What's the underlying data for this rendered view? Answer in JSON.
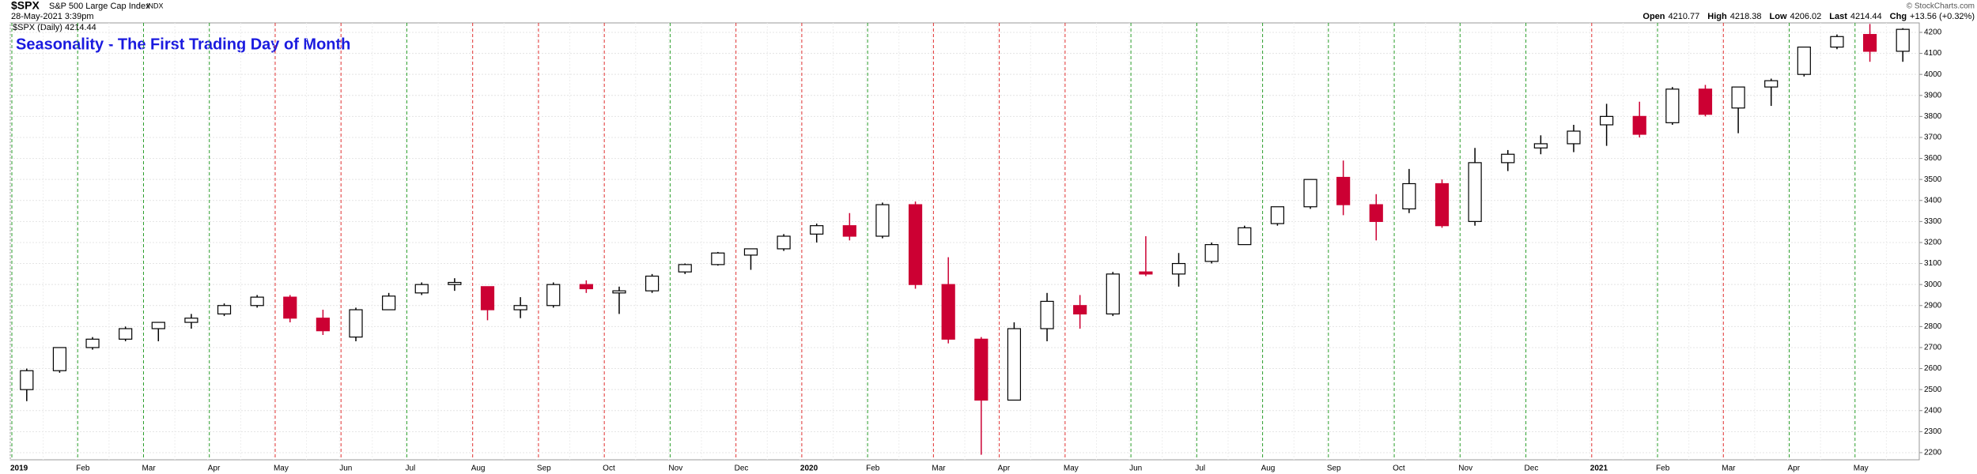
{
  "chart_data": {
    "type": "candlestick",
    "symbol": "$SPX",
    "name": "S&P 500 Large Cap Index",
    "exchange": "INDX",
    "timestamp": "28-May-2021 3:39pm",
    "legend": "$SPX (Daily) 4214.44",
    "copyright": "© StockCharts.com",
    "quote": [
      {
        "label": "Open",
        "value": "4210.77"
      },
      {
        "label": "High",
        "value": "4218.38"
      },
      {
        "label": "Low",
        "value": "4206.02"
      },
      {
        "label": "Last",
        "value": "4214.44"
      },
      {
        "label": "Chg",
        "value": "+13.56 (+0.32%)"
      }
    ],
    "title": "Seasonality - The First Trading Day of Month",
    "categories": [
      "2019",
      null,
      "Feb",
      null,
      "Mar",
      null,
      "Apr",
      null,
      "May",
      null,
      "Jun",
      null,
      "Jul",
      null,
      "Aug",
      null,
      "Sep",
      null,
      "Oct",
      null,
      "Nov",
      null,
      "Dec",
      null,
      "2020",
      null,
      "Feb",
      null,
      "Mar",
      null,
      "Apr",
      null,
      "May",
      null,
      "Jun",
      null,
      "Jul",
      null,
      "Aug",
      null,
      "Sep",
      null,
      "Oct",
      null,
      "Nov",
      null,
      "Dec",
      null,
      "2021",
      null,
      "Feb",
      null,
      "Mar",
      null,
      "Apr",
      null,
      "May",
      null
    ],
    "open": [
      2500,
      2590,
      2700,
      2740,
      2790,
      2820,
      2860,
      2900,
      2940,
      2840,
      2750,
      2880,
      2960,
      3000,
      2990,
      2880,
      2900,
      3000,
      2960,
      2970,
      3060,
      3095,
      3140,
      3170,
      3240,
      3280,
      3230,
      3380,
      3000,
      2740,
      2450,
      2790,
      2900,
      2860,
      3060,
      3050,
      3110,
      3190,
      3290,
      3370,
      3510,
      3380,
      3360,
      3480,
      3300,
      3580,
      3650,
      3670,
      3760,
      3800,
      3770,
      3930,
      3840,
      3940,
      4000,
      4130,
      4190,
      4110
    ],
    "high": [
      2600,
      2700,
      2750,
      2800,
      2820,
      2860,
      2910,
      2950,
      2950,
      2880,
      2890,
      2960,
      3010,
      3030,
      2990,
      2940,
      3010,
      3020,
      2990,
      3050,
      3100,
      3155,
      3170,
      3240,
      3290,
      3340,
      3390,
      3395,
      3130,
      2750,
      2820,
      2960,
      2950,
      3060,
      3230,
      3150,
      3200,
      3280,
      3370,
      3500,
      3590,
      3430,
      3550,
      3500,
      3650,
      3640,
      3710,
      3760,
      3860,
      3870,
      3940,
      3950,
      3940,
      3980,
      4130,
      4190,
      4240,
      4220
    ],
    "low": [
      2445,
      2580,
      2690,
      2730,
      2730,
      2790,
      2850,
      2890,
      2820,
      2760,
      2730,
      2880,
      2950,
      2970,
      2830,
      2840,
      2890,
      2960,
      2860,
      2960,
      3050,
      3090,
      3070,
      3160,
      3200,
      3210,
      3220,
      2980,
      2720,
      2190,
      2450,
      2730,
      2790,
      2850,
      3040,
      2990,
      3100,
      3190,
      3280,
      3360,
      3330,
      3210,
      3340,
      3270,
      3280,
      3540,
      3620,
      3630,
      3660,
      3700,
      3760,
      3800,
      3720,
      3850,
      3990,
      4120,
      4060,
      4060
    ],
    "close": [
      2590,
      2700,
      2740,
      2790,
      2820,
      2840,
      2900,
      2940,
      2840,
      2780,
      2880,
      2945,
      3000,
      3010,
      2880,
      2900,
      3000,
      2980,
      2970,
      3040,
      3095,
      3150,
      3170,
      3230,
      3280,
      3230,
      3380,
      3000,
      2740,
      2450,
      2790,
      2920,
      2860,
      3050,
      3050,
      3100,
      3190,
      3270,
      3370,
      3500,
      3380,
      3300,
      3480,
      3280,
      3580,
      3620,
      3670,
      3730,
      3800,
      3715,
      3930,
      3810,
      3940,
      3970,
      4130,
      4180,
      4110,
      4214.44
    ],
    "up_color": "#000000",
    "down_color": "#cc0033",
    "month_line_colors": [
      "#2a9d2a",
      "#2a9d2a",
      "#2a9d2a",
      "#2a9d2a",
      "#e03030",
      "#e03030",
      "#2a9d2a",
      "#e03030",
      "#e03030",
      "#e03030",
      "#2a9d2a",
      "#e03030",
      "#e03030",
      "#2a9d2a",
      "#e03030",
      "#e03030",
      "#e03030",
      "#2a9d2a",
      "#2a9d2a",
      "#2a9d2a",
      "#2a9d2a",
      "#2a9d2a",
      "#2a9d2a",
      "#2a9d2a",
      "#e03030",
      "#2a9d2a",
      "#e03030",
      "#2a9d2a",
      "#2a9d2a"
    ],
    "ylim": [
      2166,
      4245
    ],
    "yticks": [
      2200,
      2300,
      2400,
      2500,
      2600,
      2700,
      2800,
      2900,
      3000,
      3100,
      3200,
      3300,
      3400,
      3500,
      3600,
      3700,
      3800,
      3900,
      4000,
      4100,
      4200
    ],
    "grid": true
  }
}
